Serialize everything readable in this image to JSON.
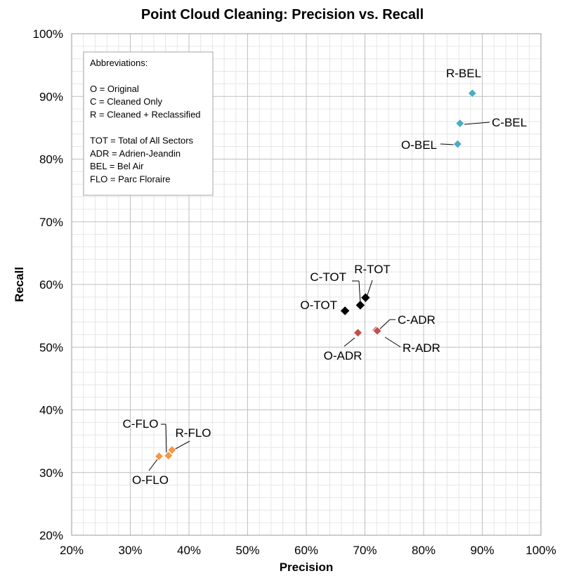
{
  "chart_data": {
    "type": "scatter",
    "title": "Point Cloud Cleaning: Precision vs. Recall",
    "xlabel": "Precision",
    "ylabel": "Recall",
    "xlim": [
      20,
      100
    ],
    "ylim": [
      20,
      100
    ],
    "x_ticks": [
      "20%",
      "30%",
      "40%",
      "50%",
      "60%",
      "70%",
      "80%",
      "90%",
      "100%"
    ],
    "y_ticks": [
      "20%",
      "30%",
      "40%",
      "50%",
      "60%",
      "70%",
      "80%",
      "90%",
      "100%"
    ],
    "grid": true,
    "colors": {
      "BEL": "#4BACC6",
      "TOT": "#000000",
      "ADR": "#C0504D",
      "FLO": "#F79646"
    },
    "points": [
      {
        "label": "O-BEL",
        "group": "BEL",
        "x": 85.8,
        "y": 82.4
      },
      {
        "label": "C-BEL",
        "group": "BEL",
        "x": 86.2,
        "y": 85.7
      },
      {
        "label": "R-BEL",
        "group": "BEL",
        "x": 88.3,
        "y": 90.5
      },
      {
        "label": "O-TOT",
        "group": "TOT",
        "x": 66.6,
        "y": 55.8
      },
      {
        "label": "C-TOT",
        "group": "TOT",
        "x": 69.2,
        "y": 56.7
      },
      {
        "label": "R-TOT",
        "group": "TOT",
        "x": 70.1,
        "y": 57.9
      },
      {
        "label": "O-ADR",
        "group": "ADR",
        "x": 68.8,
        "y": 52.3
      },
      {
        "label": "C-ADR",
        "group": "ADR",
        "x": 71.9,
        "y": 52.7
      },
      {
        "label": "R-ADR",
        "group": "ADR",
        "x": 72.1,
        "y": 52.6
      },
      {
        "label": "O-FLO",
        "group": "FLO",
        "x": 34.9,
        "y": 32.6
      },
      {
        "label": "C-FLO",
        "group": "FLO",
        "x": 36.5,
        "y": 32.7
      },
      {
        "label": "R-FLO",
        "group": "FLO",
        "x": 37.1,
        "y": 33.6
      }
    ],
    "legend_box": {
      "lines": [
        "Abbreviations:",
        "",
        "O = Original",
        "C = Cleaned Only",
        "R = Cleaned + Reclassified",
        "",
        "TOT = Total of All Sectors",
        "ADR = Adrien-Jeandin",
        "BEL = Bel Air",
        "FLO = Parc Floraire"
      ]
    }
  }
}
